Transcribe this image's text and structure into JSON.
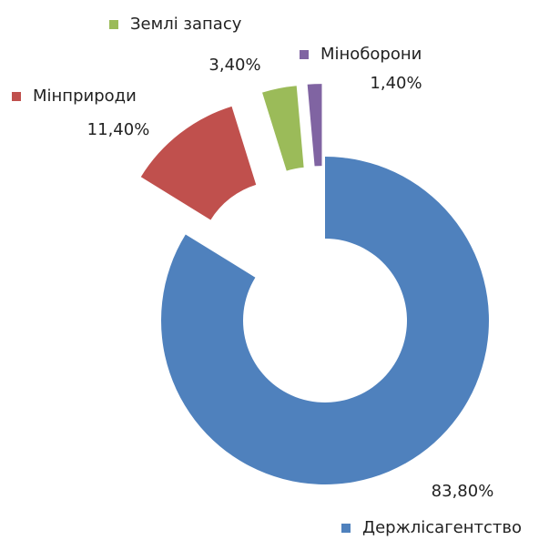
{
  "chart_data": {
    "type": "donut",
    "categories": [
      "Держлісагентство",
      "Мінприроди",
      "Землі запасу",
      "Міноборони"
    ],
    "values": [
      83.8,
      11.4,
      3.4,
      1.4
    ],
    "value_labels": [
      "83,80%",
      "11,40%",
      "3,40%",
      "1,40%"
    ],
    "colors": [
      "#4f81bd",
      "#c0504d",
      "#9bbb59",
      "#8064a2"
    ],
    "exploded": [
      false,
      true,
      true,
      true
    ]
  }
}
